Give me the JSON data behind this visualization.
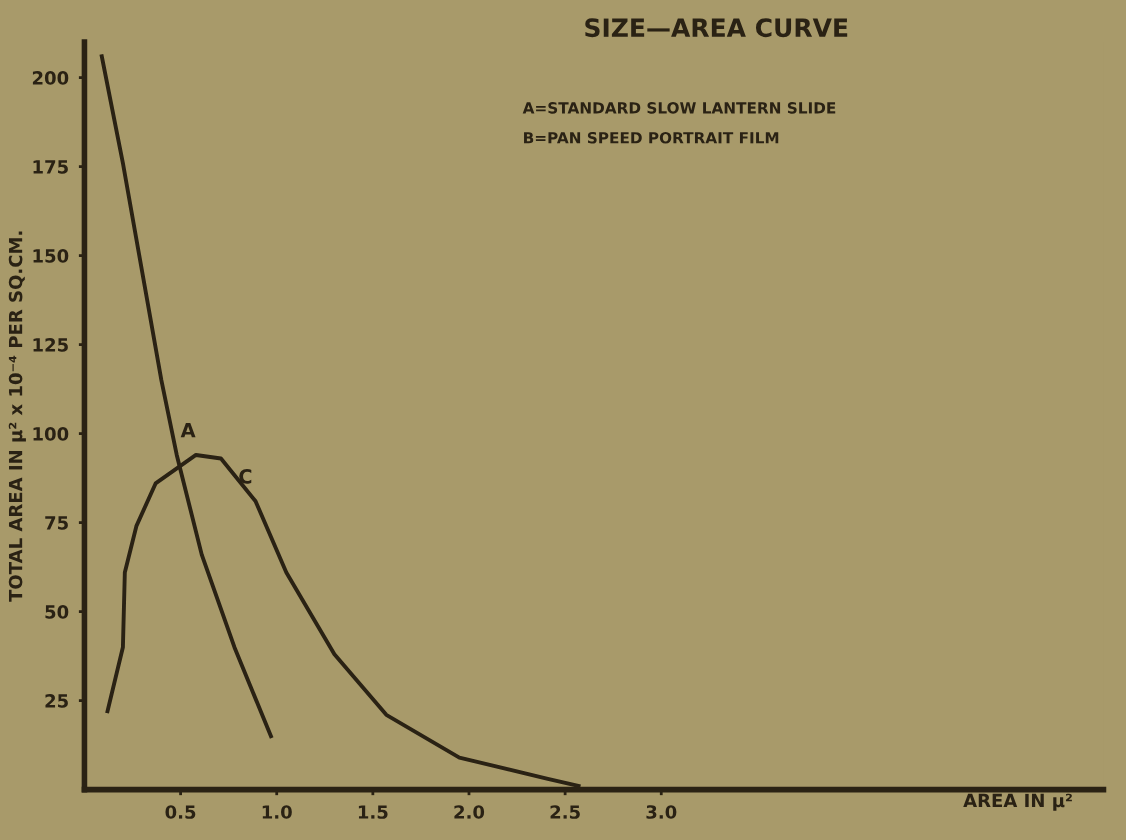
{
  "chart_data": {
    "type": "line",
    "title": "SIZE—AREA CURVE",
    "xlabel": "AREA IN μ²",
    "ylabel": "TOTAL AREA IN μ² x 10⁻⁴ PER SQ.CM.",
    "series": [
      {
        "color": "#2a2214",
        "x": [
          0.09,
          0.2,
          0.4,
          0.48,
          0.61,
          0.78,
          0.97
        ],
        "values": [
          206,
          176,
          115,
          94,
          66,
          40,
          15
        ]
      },
      {
        "color": "#2a2214",
        "x": [
          0.12,
          0.2,
          0.21,
          0.27,
          0.37,
          0.58,
          0.71,
          0.89,
          1.05,
          1.3,
          1.57,
          1.95,
          2.41,
          2.57
        ],
        "values": [
          22,
          40,
          61,
          74,
          86,
          94,
          93,
          81,
          61,
          38,
          21,
          9,
          3,
          1
        ]
      }
    ],
    "annotations": [
      "A=STANDARD SLOW LANTERN SLIDE",
      "B=PAN SPEED PORTRAIT FILM",
      {
        "text": "A",
        "x": 0.5,
        "y": 99
      },
      {
        "text": "C",
        "x": 0.8,
        "y": 86
      }
    ],
    "xlim": [
      0,
      5.3
    ],
    "ylim": [
      0,
      210
    ],
    "xticks": [
      0.5,
      {
        "value": 1,
        "label": "1.0"
      },
      1.5,
      {
        "value": 2,
        "label": "2.0"
      },
      2.5,
      {
        "value": 3,
        "label": "3.0"
      }
    ],
    "yticks": [
      25,
      50,
      75,
      100,
      125,
      150,
      175,
      200
    ],
    "grid": false,
    "legend": false,
    "line_style": "solid",
    "marker": "none"
  }
}
